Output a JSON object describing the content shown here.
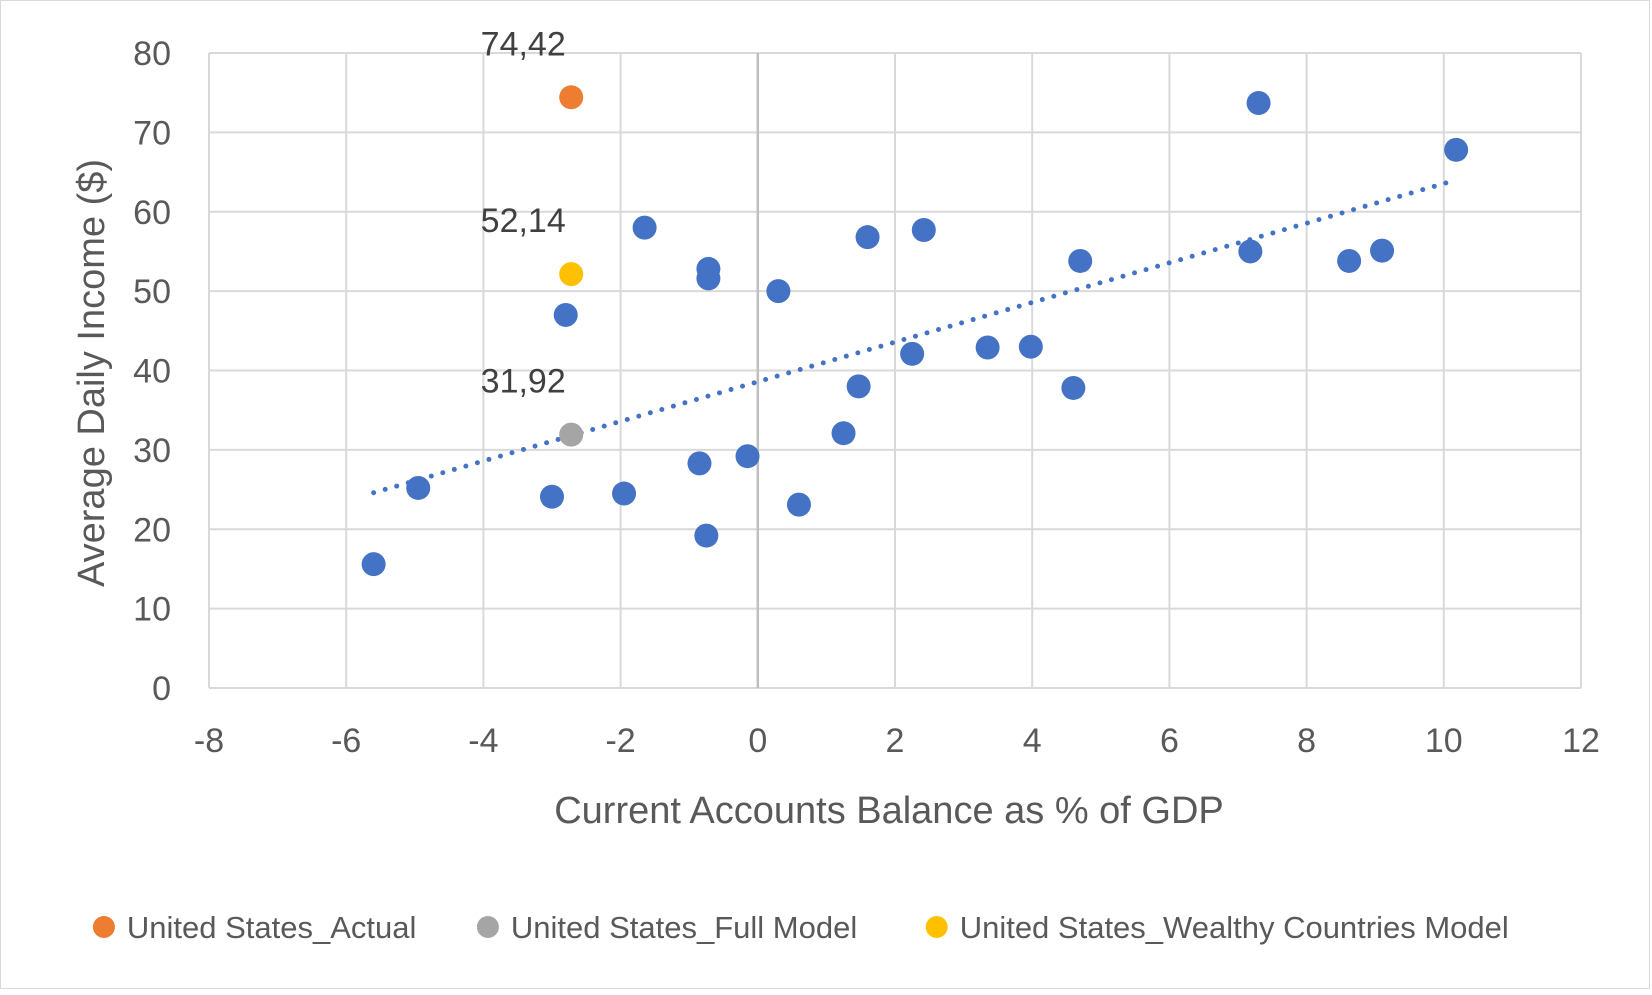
{
  "chart_data": {
    "type": "scatter",
    "title": "",
    "xlabel": "Current Accounts Balance as % of GDP",
    "ylabel": "Average Daily Income ($)",
    "xlim": [
      -8,
      12
    ],
    "ylim": [
      0,
      80
    ],
    "x_ticks": [
      -8,
      -6,
      -4,
      -2,
      0,
      2,
      4,
      6,
      8,
      10,
      12
    ],
    "y_ticks": [
      0,
      10,
      20,
      30,
      40,
      50,
      60,
      70,
      80
    ],
    "grid": true,
    "legend_position": "bottom",
    "series": [
      {
        "color": "#4472c4",
        "in_legend": false,
        "points": [
          {
            "x": -5.6,
            "y": 15.6
          },
          {
            "x": -4.95,
            "y": 25.2
          },
          {
            "x": -3.0,
            "y": 24.1
          },
          {
            "x": -2.8,
            "y": 47.0
          },
          {
            "x": -1.95,
            "y": 24.5
          },
          {
            "x": -1.65,
            "y": 58.0
          },
          {
            "x": -0.85,
            "y": 28.3
          },
          {
            "x": -0.75,
            "y": 19.2
          },
          {
            "x": -0.72,
            "y": 52.8
          },
          {
            "x": -0.72,
            "y": 51.6
          },
          {
            "x": -0.15,
            "y": 29.2
          },
          {
            "x": 0.3,
            "y": 50.0
          },
          {
            "x": 0.6,
            "y": 23.1
          },
          {
            "x": 1.25,
            "y": 32.1
          },
          {
            "x": 1.47,
            "y": 38.0
          },
          {
            "x": 1.6,
            "y": 56.8
          },
          {
            "x": 2.25,
            "y": 42.1
          },
          {
            "x": 2.42,
            "y": 57.7
          },
          {
            "x": 3.35,
            "y": 42.9
          },
          {
            "x": 3.98,
            "y": 43.0
          },
          {
            "x": 4.6,
            "y": 37.8
          },
          {
            "x": 4.7,
            "y": 53.8
          },
          {
            "x": 7.18,
            "y": 55.0
          },
          {
            "x": 7.3,
            "y": 73.7
          },
          {
            "x": 8.62,
            "y": 53.8
          },
          {
            "x": 9.1,
            "y": 55.1
          },
          {
            "x": 10.18,
            "y": 67.8
          }
        ]
      },
      {
        "name": "United States_Actual",
        "color": "#ed7d31",
        "in_legend": true,
        "points": [
          {
            "x": -2.72,
            "y": 74.42,
            "label": "74,42"
          }
        ]
      },
      {
        "name": "United States_Full Model",
        "color": "#a5a5a5",
        "in_legend": true,
        "points": [
          {
            "x": -2.72,
            "y": 31.92,
            "label": "31,92"
          }
        ]
      },
      {
        "name": "United States_Wealthy Countries Model",
        "color": "#ffc000",
        "in_legend": true,
        "points": [
          {
            "x": -2.72,
            "y": 52.14,
            "label": "52,14"
          }
        ]
      }
    ],
    "trendline": {
      "type": "linear",
      "style": "dotted",
      "color": "#4472c4",
      "x_start": -5.6,
      "x_end": 10.18,
      "y_start": 24.6,
      "y_end": 64.0
    }
  }
}
